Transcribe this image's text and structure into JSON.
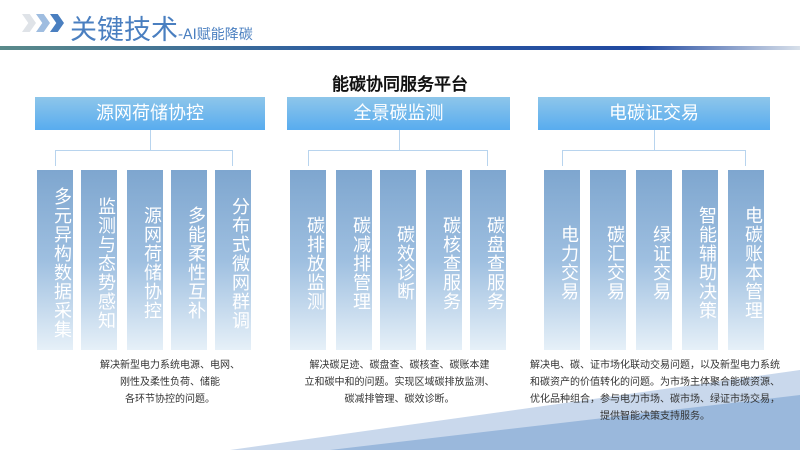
{
  "header": {
    "title": "关键技术",
    "subtitle": "-AI赋能降碳"
  },
  "platform_title": "能碳协同服务平台",
  "groups": [
    {
      "title": "源网荷储协控",
      "items": [
        "多元异构数据采集",
        "监测与态势感知",
        "源网荷储协控",
        "多能柔性互补",
        "分布式微网群调"
      ],
      "desc": [
        "解决新型电力系统电源、电网、",
        "刚性及柔性负荷、储能",
        "各环节协控的问题。"
      ]
    },
    {
      "title": "全景碳监测",
      "items": [
        "碳排放监测",
        "碳减排管理",
        "碳效诊断",
        "碳核查服务",
        "碳盘查服务"
      ],
      "desc": [
        "解决碳足迹、碳盘查、碳核查、碳账本建",
        "立和碳中和的问题。实现区域碳排放监测、",
        "碳减排管理、碳效诊断。"
      ]
    },
    {
      "title": "电碳证交易",
      "items": [
        "电力交易",
        "碳汇交易",
        "绿证交易",
        "智能辅助决策",
        "电碳账本管理"
      ],
      "desc": [
        "解决电、碳、证市场化联动交易问题，以及新型电力系统",
        "和碳资产的价值转化的问题。为市场主体聚合能碳资源、",
        "优化品种组合，参与电力市场、碳市场、绿证市场交易，",
        "提供智能决策支持服务。"
      ]
    }
  ],
  "colors": {
    "accent": "#4a7fc0",
    "header_box": "#58acef",
    "column_box": "#7ea6cf"
  }
}
